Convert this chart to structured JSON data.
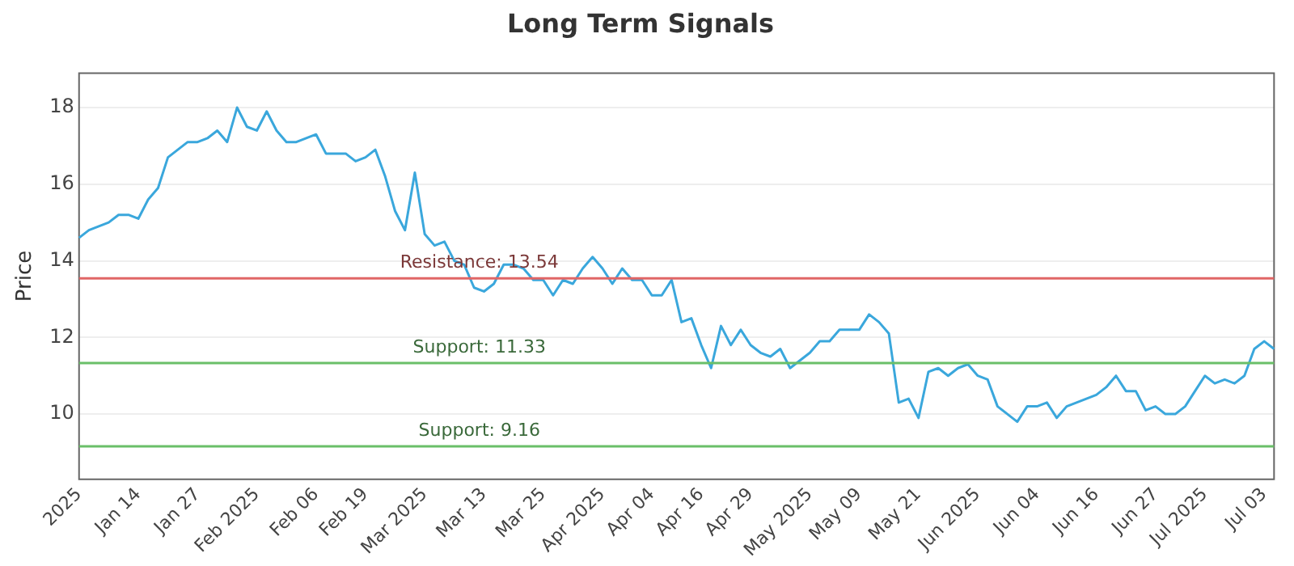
{
  "chart_data": {
    "type": "line",
    "title": "Long Term Signals",
    "ylabel": "Price",
    "categories": [
      "2025",
      null,
      null,
      null,
      null,
      null,
      "Jan 14",
      null,
      null,
      null,
      null,
      null,
      "Jan 27",
      null,
      null,
      null,
      null,
      null,
      "Feb 2025",
      null,
      null,
      null,
      null,
      null,
      "Feb 06",
      null,
      null,
      null,
      null,
      "Feb 19",
      null,
      null,
      null,
      null,
      null,
      "Mar 2025",
      null,
      null,
      null,
      null,
      null,
      "Mar 13",
      null,
      null,
      null,
      null,
      null,
      "Mar 25",
      null,
      null,
      null,
      null,
      null,
      "Apr 2025",
      null,
      null,
      null,
      null,
      "Apr 04",
      null,
      null,
      null,
      null,
      "Apr 16",
      null,
      null,
      null,
      null,
      "Apr 29",
      null,
      null,
      null,
      null,
      null,
      "May 2025",
      null,
      null,
      null,
      null,
      "May 09",
      null,
      null,
      null,
      null,
      null,
      "May 21",
      null,
      null,
      null,
      null,
      null,
      "Jun 2025",
      null,
      null,
      null,
      null,
      null,
      "Jun 04",
      null,
      null,
      null,
      null,
      null,
      "Jun 16",
      null,
      null,
      null,
      null,
      null,
      "Jun 27",
      null,
      null,
      null,
      null,
      "Jul 2025",
      null,
      null,
      null,
      null,
      null,
      "Jul 03",
      null
    ],
    "series": [
      {
        "color": "#3aa7dc",
        "values": [
          14.6,
          14.8,
          14.9,
          15.0,
          15.2,
          15.2,
          15.1,
          15.6,
          15.9,
          16.7,
          16.9,
          17.1,
          17.1,
          17.2,
          17.4,
          17.1,
          18.0,
          17.5,
          17.4,
          17.9,
          17.4,
          17.1,
          17.1,
          17.2,
          17.3,
          16.8,
          16.8,
          16.8,
          16.6,
          16.7,
          16.9,
          16.2,
          15.3,
          14.8,
          16.3,
          14.7,
          14.4,
          14.5,
          14.0,
          13.9,
          13.3,
          13.2,
          13.4,
          13.9,
          13.9,
          13.8,
          13.5,
          13.5,
          13.1,
          13.5,
          13.4,
          13.8,
          14.1,
          13.8,
          13.4,
          13.8,
          13.5,
          13.5,
          13.1,
          13.1,
          13.5,
          12.4,
          12.5,
          11.8,
          11.2,
          12.3,
          11.8,
          12.2,
          11.8,
          11.6,
          11.5,
          11.7,
          11.2,
          11.4,
          11.6,
          11.9,
          11.9,
          12.2,
          12.2,
          12.2,
          12.6,
          12.4,
          12.1,
          10.3,
          10.4,
          9.9,
          11.1,
          11.2,
          11.0,
          11.2,
          11.3,
          11.0,
          10.9,
          10.2,
          10.0,
          9.8,
          10.2,
          10.2,
          10.3,
          9.9,
          10.2,
          10.3,
          10.4,
          10.5,
          10.7,
          11.0,
          10.6,
          10.6,
          10.1,
          10.2,
          10.0,
          10.0,
          10.2,
          10.6,
          11.0,
          10.8,
          10.9,
          10.8,
          11.0,
          11.7,
          11.9,
          11.7
        ]
      }
    ],
    "ylim": [
      8.3,
      18.9
    ],
    "yticks": [
      10,
      12,
      14,
      16,
      18
    ],
    "grid": "y",
    "marker": "none",
    "line_style": "solid",
    "ref_lines": [
      {
        "axis": "y",
        "value": 13.54,
        "label": "Resistance: 13.54",
        "color": "#e06666"
      },
      {
        "axis": "y",
        "value": 11.33,
        "label": "Support: 11.33",
        "color": "#6abf69"
      },
      {
        "axis": "y",
        "value": 9.16,
        "label": "Support: 9.16",
        "color": "#6abf69"
      }
    ]
  }
}
